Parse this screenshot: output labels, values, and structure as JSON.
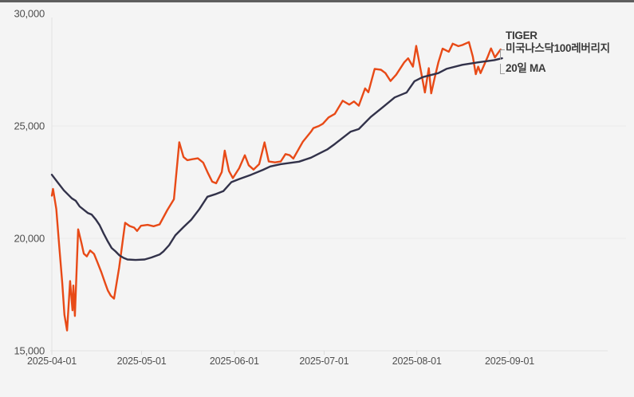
{
  "window": {
    "background_color": "#f4f4f4",
    "top_edge_color": "#5f5f5f"
  },
  "chart_data": {
    "type": "line",
    "title": "",
    "xlabel": "",
    "ylabel": "",
    "grid": "horizontal-faint",
    "legend_position": "top-right",
    "x_unit": "days since 2025-04-01",
    "ylim": [
      15000,
      30000
    ],
    "yticks": [
      {
        "value": 30000,
        "label": "30,000"
      },
      {
        "value": 25000,
        "label": "25,000"
      },
      {
        "value": 20000,
        "label": "20,000"
      },
      {
        "value": 15000,
        "label": "15,000"
      }
    ],
    "grid_values": [
      25000,
      20000
    ],
    "xticks": [
      {
        "day": 0,
        "label": "2025-04-01"
      },
      {
        "day": 30,
        "label": "2025-05-01"
      },
      {
        "day": 61,
        "label": "2025-06-01"
      },
      {
        "day": 91,
        "label": "2025-07-01"
      },
      {
        "day": 122,
        "label": "2025-08-01"
      },
      {
        "day": 153,
        "label": "2025-09-01"
      }
    ],
    "legend": {
      "price_line1": "TIGER",
      "price_line2": "미국나스닥100레버리지",
      "ma_label": "20일 MA"
    },
    "series": [
      {
        "id": "price",
        "name": "TIGER 미국나스닥100레버리지",
        "color": "#e84a17",
        "points": [
          [
            0,
            21900
          ],
          [
            0.4,
            22200
          ],
          [
            1.5,
            21300
          ],
          [
            2.5,
            19600
          ],
          [
            3.5,
            18000
          ],
          [
            4.2,
            16600
          ],
          [
            5.1,
            15900
          ],
          [
            6.1,
            18100
          ],
          [
            6.9,
            16800
          ],
          [
            7.2,
            17900
          ],
          [
            7.7,
            16550
          ],
          [
            8.8,
            20400
          ],
          [
            9.9,
            19800
          ],
          [
            10.7,
            19320
          ],
          [
            11.7,
            19200
          ],
          [
            12.8,
            19460
          ],
          [
            14.1,
            19310
          ],
          [
            15.2,
            18950
          ],
          [
            16.5,
            18510
          ],
          [
            17.9,
            17970
          ],
          [
            18.7,
            17680
          ],
          [
            19.7,
            17450
          ],
          [
            20.8,
            17320
          ],
          [
            22.5,
            18700
          ],
          [
            24.5,
            20690
          ],
          [
            26,
            20550
          ],
          [
            27.5,
            20480
          ],
          [
            28.5,
            20330
          ],
          [
            29.8,
            20560
          ],
          [
            32,
            20600
          ],
          [
            34,
            20540
          ],
          [
            36,
            20620
          ],
          [
            38.6,
            21260
          ],
          [
            40.8,
            21740
          ],
          [
            42.6,
            24275
          ],
          [
            44,
            23620
          ],
          [
            45.3,
            23480
          ],
          [
            47,
            23520
          ],
          [
            48.8,
            23560
          ],
          [
            50.6,
            23370
          ],
          [
            52.2,
            22900
          ],
          [
            53.6,
            22520
          ],
          [
            54.9,
            22450
          ],
          [
            56.8,
            22950
          ],
          [
            57.8,
            23900
          ],
          [
            59.2,
            23000
          ],
          [
            60.5,
            22680
          ],
          [
            62.6,
            23120
          ],
          [
            64.5,
            23700
          ],
          [
            65.8,
            23250
          ],
          [
            67.4,
            23060
          ],
          [
            69.3,
            23300
          ],
          [
            71.1,
            24270
          ],
          [
            72.5,
            23420
          ],
          [
            74.6,
            23380
          ],
          [
            76.5,
            23420
          ],
          [
            78.1,
            23750
          ],
          [
            79.5,
            23700
          ],
          [
            80.7,
            23550
          ],
          [
            83.9,
            24300
          ],
          [
            86.6,
            24740
          ],
          [
            87.4,
            24900
          ],
          [
            89.3,
            25000
          ],
          [
            90.6,
            25100
          ],
          [
            92.5,
            25380
          ],
          [
            94.6,
            25540
          ],
          [
            97.2,
            26120
          ],
          [
            99.4,
            25950
          ],
          [
            101,
            26090
          ],
          [
            102.6,
            25900
          ],
          [
            104.7,
            26670
          ],
          [
            105.8,
            26500
          ],
          [
            107.9,
            27540
          ],
          [
            110,
            27500
          ],
          [
            111.5,
            27350
          ],
          [
            113.2,
            27000
          ],
          [
            115.1,
            27280
          ],
          [
            117.8,
            27830
          ],
          [
            119.1,
            28010
          ],
          [
            120.7,
            27640
          ],
          [
            121.8,
            28560
          ],
          [
            124.7,
            26490
          ],
          [
            126,
            27570
          ],
          [
            126.8,
            26450
          ],
          [
            127.9,
            27100
          ],
          [
            129.2,
            27830
          ],
          [
            130.6,
            28440
          ],
          [
            132.7,
            28300
          ],
          [
            134,
            28660
          ],
          [
            135.9,
            28550
          ],
          [
            137.2,
            28600
          ],
          [
            139.4,
            28730
          ],
          [
            140.7,
            28080
          ],
          [
            141.7,
            27300
          ],
          [
            142.5,
            27640
          ],
          [
            143.3,
            27350
          ],
          [
            145.7,
            28080
          ],
          [
            146.8,
            28450
          ],
          [
            148.1,
            28050
          ],
          [
            150,
            28400
          ]
        ]
      },
      {
        "id": "ma20",
        "name": "20일 MA",
        "color": "#32324a",
        "points": [
          [
            0,
            22830
          ],
          [
            1.9,
            22500
          ],
          [
            4,
            22140
          ],
          [
            6.7,
            21780
          ],
          [
            8,
            21670
          ],
          [
            9.3,
            21420
          ],
          [
            12,
            21130
          ],
          [
            13.3,
            21060
          ],
          [
            14.7,
            20840
          ],
          [
            16,
            20580
          ],
          [
            17.3,
            20220
          ],
          [
            18.7,
            19860
          ],
          [
            20,
            19570
          ],
          [
            21.3,
            19420
          ],
          [
            22.6,
            19240
          ],
          [
            24,
            19130
          ],
          [
            25.3,
            19060
          ],
          [
            28,
            19040
          ],
          [
            31,
            19060
          ],
          [
            33.3,
            19150
          ],
          [
            36,
            19280
          ],
          [
            37.3,
            19420
          ],
          [
            39.2,
            19700
          ],
          [
            41.3,
            20140
          ],
          [
            44,
            20500
          ],
          [
            46.6,
            20830
          ],
          [
            49.3,
            21300
          ],
          [
            52,
            21850
          ],
          [
            54.6,
            21960
          ],
          [
            57.3,
            22100
          ],
          [
            60,
            22500
          ],
          [
            62.6,
            22640
          ],
          [
            66.6,
            22830
          ],
          [
            70.6,
            23050
          ],
          [
            73,
            23200
          ],
          [
            76.5,
            23300
          ],
          [
            82.6,
            23410
          ],
          [
            86.6,
            23590
          ],
          [
            89.3,
            23770
          ],
          [
            92,
            23950
          ],
          [
            94.6,
            24200
          ],
          [
            99.9,
            24750
          ],
          [
            102.6,
            24860
          ],
          [
            106.6,
            25400
          ],
          [
            110.6,
            25830
          ],
          [
            114.6,
            26270
          ],
          [
            118.6,
            26490
          ],
          [
            121.2,
            26990
          ],
          [
            123.9,
            27170
          ],
          [
            129.2,
            27350
          ],
          [
            131.9,
            27540
          ],
          [
            137.2,
            27720
          ],
          [
            142.5,
            27830
          ],
          [
            147.9,
            27930
          ],
          [
            150.5,
            28010
          ]
        ]
      }
    ]
  }
}
